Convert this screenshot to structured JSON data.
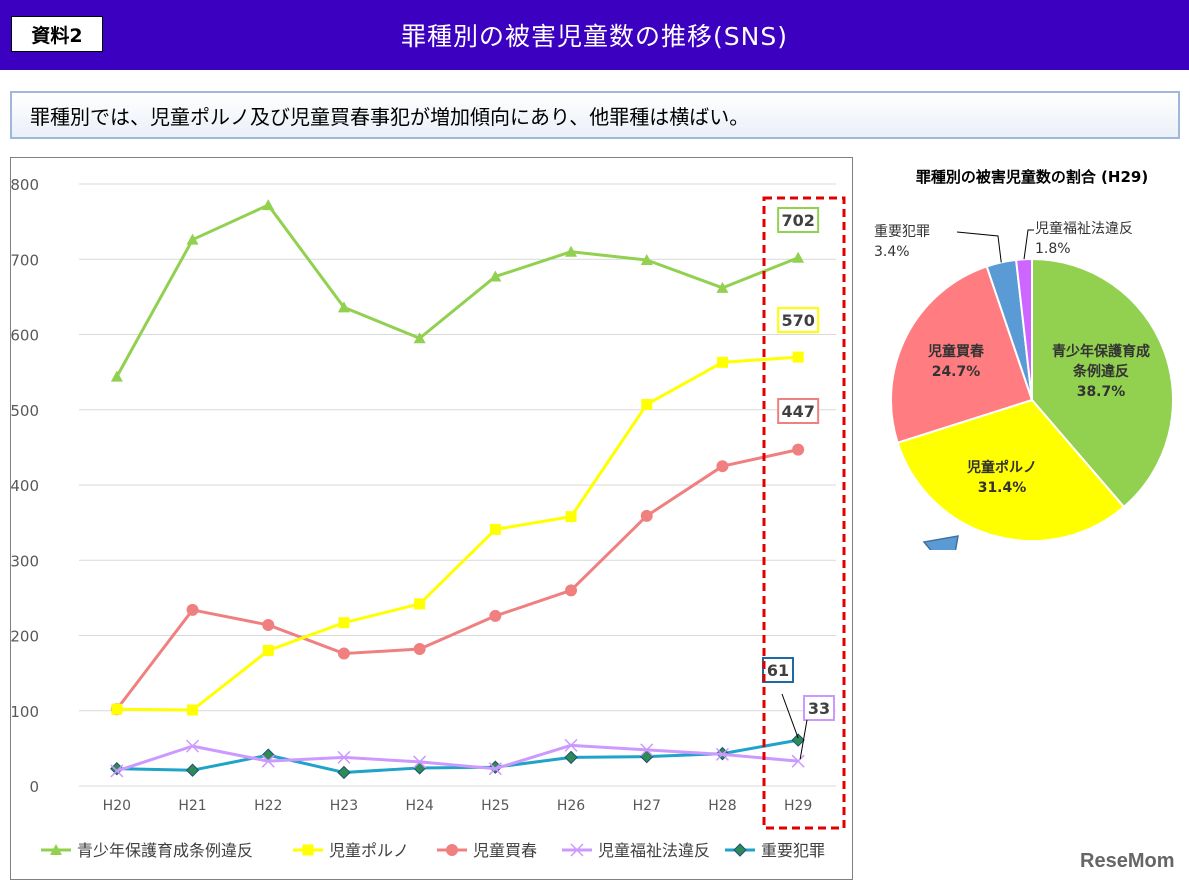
{
  "header": {
    "badge": "資料2",
    "title": "罪種別の被害児童数の推移(SNS)"
  },
  "summary": "罪種別では、児童ポルノ及び児童買春事犯が増加傾向にあり、他罪種は横ばい。",
  "logo": "ReseMom",
  "chart_data": [
    {
      "type": "line",
      "title": "",
      "categories": [
        "H20",
        "H21",
        "H22",
        "H23",
        "H24",
        "H25",
        "H26",
        "H27",
        "H28",
        "H29"
      ],
      "ylim": [
        0,
        800
      ],
      "yticks": [
        "0",
        "100",
        "200",
        "300",
        "400",
        "500",
        "600",
        "700",
        "800"
      ],
      "grid": true,
      "legend": "bottom",
      "series": [
        {
          "name": "青少年保護育成条例違反",
          "color": "#92d050",
          "marker": "triangle",
          "values": [
            544,
            726,
            772,
            636,
            595,
            677,
            710,
            699,
            662,
            702
          ]
        },
        {
          "name": "児童ポルノ",
          "color": "#ffff00",
          "marker": "square",
          "values": [
            102,
            101,
            180,
            217,
            242,
            341,
            358,
            507,
            563,
            570
          ]
        },
        {
          "name": "児童買春",
          "color": "#f08080",
          "marker": "circle",
          "values": [
            102,
            234,
            214,
            176,
            182,
            226,
            260,
            359,
            425,
            447
          ]
        },
        {
          "name": "児童福祉法違反",
          "color": "#cc99ff",
          "marker": "x",
          "values": [
            20,
            53,
            33,
            38,
            32,
            23,
            54,
            48,
            42,
            33
          ]
        },
        {
          "name": "重要犯罪",
          "color": "#1fa3c8",
          "marker": "diamond",
          "values": [
            23,
            21,
            41,
            18,
            24,
            25,
            38,
            39,
            43,
            61
          ]
        }
      ],
      "callouts": [
        {
          "label": "702",
          "border": "#92d050"
        },
        {
          "label": "570",
          "border": "#ffff00"
        },
        {
          "label": "447",
          "border": "#f08080"
        },
        {
          "label": "61",
          "border": "#1f6aa5"
        },
        {
          "label": "33",
          "border": "#cc99ff"
        }
      ]
    },
    {
      "type": "pie",
      "title": "罪種別の被害児童数の割合 (H29)",
      "slices": [
        {
          "name": "青少年保護育成\n条例違反",
          "value": 38.7,
          "label": "38.7%",
          "color": "#92d050"
        },
        {
          "name": "児童ポルノ",
          "value": 31.4,
          "label": "31.4%",
          "color": "#ffff00"
        },
        {
          "name": "児童買春",
          "value": 24.7,
          "label": "24.7%",
          "color": "#ff7c80"
        },
        {
          "name": "重要犯罪",
          "value": 3.4,
          "label": "3.4%",
          "color": "#5b9bd5"
        },
        {
          "name": "児童福祉法違反",
          "value": 1.8,
          "label": "1.8%",
          "color": "#cc66ff"
        }
      ]
    }
  ]
}
